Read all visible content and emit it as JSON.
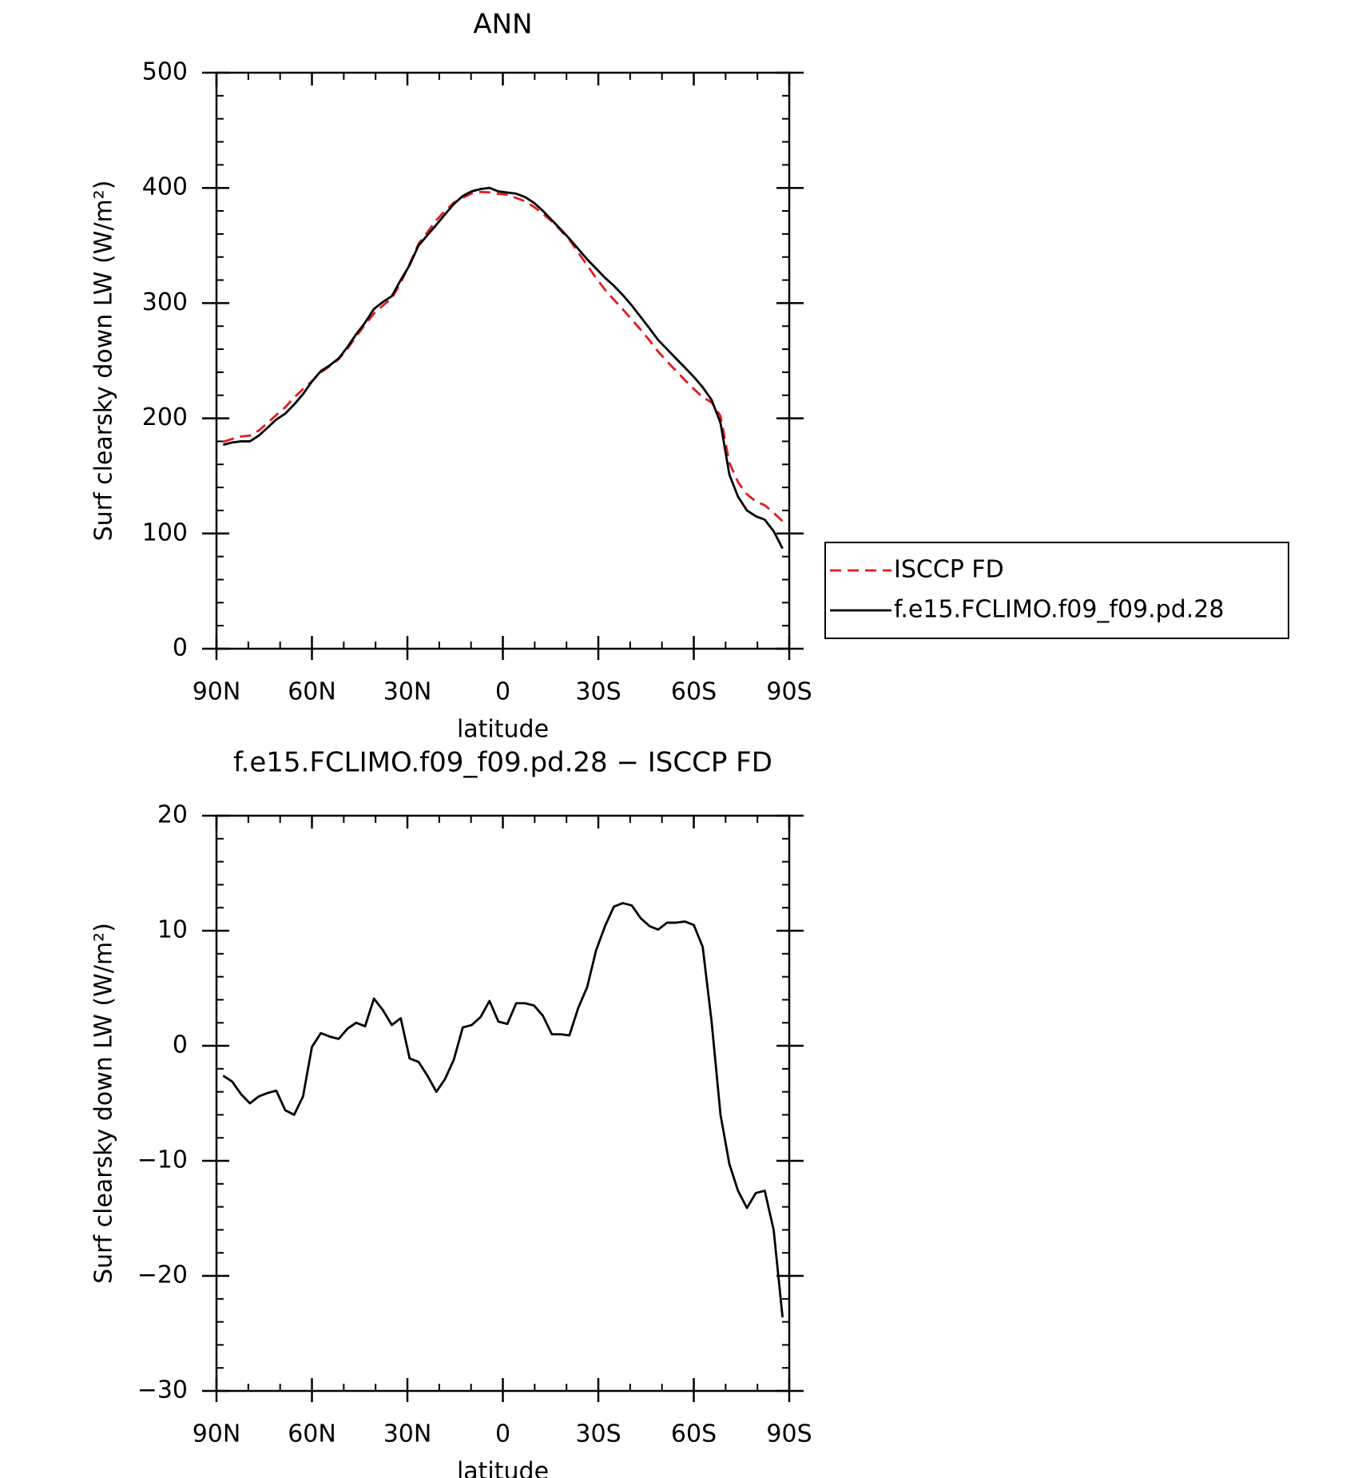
{
  "chart_data": [
    {
      "type": "line",
      "title": "ANN",
      "xlabel": "latitude",
      "ylabel": "Surf clearsky down LW (W/m²)",
      "x": [
        87.9,
        85.1,
        82.3,
        79.5,
        76.7,
        73.9,
        71.2,
        68.4,
        65.6,
        62.8,
        60.0,
        57.2,
        54.4,
        51.6,
        48.8,
        46.1,
        43.3,
        40.5,
        37.7,
        34.9,
        32.1,
        29.3,
        26.5,
        23.7,
        20.9,
        18.2,
        15.4,
        12.6,
        9.8,
        7.0,
        4.2,
        1.4,
        -1.4,
        -4.2,
        -7.0,
        -9.8,
        -12.6,
        -15.4,
        -18.2,
        -20.9,
        -23.7,
        -26.5,
        -29.3,
        -32.1,
        -34.9,
        -37.7,
        -40.5,
        -43.3,
        -46.1,
        -48.8,
        -51.6,
        -54.4,
        -57.2,
        -60.0,
        -62.8,
        -65.6,
        -68.4,
        -71.2,
        -73.9,
        -76.7,
        -79.5,
        -82.3,
        -85.1,
        -87.9
      ],
      "series": [
        {
          "name": "ISCCP FD",
          "color": "#e41a1c",
          "dashed": true,
          "values": [
            179.6,
            182.1,
            184.2,
            185,
            189.4,
            196.1,
            202.9,
            209.6,
            218,
            225.4,
            232.1,
            239.9,
            245.2,
            251.4,
            260.5,
            271,
            281.3,
            290.9,
            297.9,
            304.2,
            317.6,
            334.1,
            351.4,
            361.6,
            372,
            379.9,
            387.2,
            391.4,
            395.2,
            396.5,
            396.1,
            394.9,
            394.1,
            391.3,
            388.3,
            383.5,
            377.4,
            371,
            363,
            355.1,
            343.7,
            332.9,
            321.7,
            311.6,
            302.9,
            294.6,
            285.8,
            276.9,
            267.6,
            257.9,
            249.3,
            241.3,
            233.2,
            225.5,
            218.4,
            213.9,
            202,
            161.3,
            144.6,
            134.1,
            127.8,
            124.6,
            118,
            110.6
          ]
        },
        {
          "name": "f.e15.FCLIMO.f09_f09.pd.28",
          "color": "#000000",
          "dashed": false,
          "values": [
            177,
            179,
            180,
            180,
            185,
            192,
            199,
            204,
            212,
            221,
            232,
            241,
            246,
            252,
            262,
            273,
            283,
            295,
            301,
            306,
            320,
            333,
            350,
            359,
            368,
            377,
            386,
            393,
            397,
            399,
            400,
            397,
            396,
            395,
            392,
            387,
            380,
            372,
            364,
            356,
            347,
            338,
            330,
            322,
            315,
            307,
            298,
            288,
            278,
            268,
            260,
            252,
            244,
            236,
            227,
            216,
            196,
            151,
            132,
            120,
            115,
            112,
            102,
            87
          ]
        }
      ],
      "xlim": [
        90,
        -90
      ],
      "xticks": [
        {
          "value": 90,
          "label": "90N"
        },
        {
          "value": 60,
          "label": "60N"
        },
        {
          "value": 30,
          "label": "30N"
        },
        0,
        {
          "value": -30,
          "label": "30S"
        },
        {
          "value": -60,
          "label": "60S"
        },
        {
          "value": -90,
          "label": "90S"
        }
      ],
      "ylim": [
        0,
        500
      ],
      "yticks": [
        0,
        100,
        200,
        300,
        400,
        500
      ],
      "legend": "right"
    },
    {
      "type": "line",
      "title": "f.e15.FCLIMO.f09_f09.pd.28 − ISCCP FD",
      "xlabel": "latitude",
      "ylabel": "Surf clearsky down LW (W/m²)",
      "x": [
        87.9,
        85.1,
        82.3,
        79.5,
        76.7,
        73.9,
        71.2,
        68.4,
        65.6,
        62.8,
        60.0,
        57.2,
        54.4,
        51.6,
        48.8,
        46.1,
        43.3,
        40.5,
        37.7,
        34.9,
        32.1,
        29.3,
        26.5,
        23.7,
        20.9,
        18.2,
        15.4,
        12.6,
        9.8,
        7.0,
        4.2,
        1.4,
        -1.4,
        -4.2,
        -7.0,
        -9.8,
        -12.6,
        -15.4,
        -18.2,
        -20.9,
        -23.7,
        -26.5,
        -29.3,
        -32.1,
        -34.9,
        -37.7,
        -40.5,
        -43.3,
        -46.1,
        -48.8,
        -51.6,
        -54.4,
        -57.2,
        -60.0,
        -62.8,
        -65.6,
        -68.4,
        -71.2,
        -73.9,
        -76.7,
        -79.5,
        -82.3,
        -85.1,
        -87.9
      ],
      "color": "#000000",
      "values": [
        -2.6,
        -3.1,
        -4.2,
        -5.0,
        -4.4,
        -4.1,
        -3.9,
        -5.6,
        -6.0,
        -4.4,
        -0.1,
        1.1,
        0.8,
        0.6,
        1.5,
        2.0,
        1.7,
        4.1,
        3.1,
        1.8,
        2.4,
        -1.1,
        -1.4,
        -2.6,
        -4.0,
        -2.9,
        -1.2,
        1.6,
        1.8,
        2.5,
        3.9,
        2.1,
        1.9,
        3.7,
        3.7,
        3.5,
        2.6,
        1.0,
        1.0,
        0.9,
        3.3,
        5.1,
        8.3,
        10.4,
        12.1,
        12.4,
        12.2,
        11.1,
        10.4,
        10.1,
        10.7,
        10.7,
        10.8,
        10.5,
        8.6,
        2.1,
        -6.0,
        -10.3,
        -12.6,
        -14.1,
        -12.8,
        -12.6,
        -16.0,
        -23.6
      ],
      "xlim": [
        90,
        -90
      ],
      "xticks": [
        {
          "value": 90,
          "label": "90N"
        },
        {
          "value": 60,
          "label": "60N"
        },
        {
          "value": 30,
          "label": "30N"
        },
        0,
        {
          "value": -30,
          "label": "30S"
        },
        {
          "value": -60,
          "label": "60S"
        },
        {
          "value": -90,
          "label": "90S"
        }
      ],
      "ylim": [
        -30,
        20
      ],
      "yticks": [
        {
          "value": -30,
          "label": "−30"
        },
        {
          "value": -20,
          "label": "−20"
        },
        {
          "value": -10,
          "label": "−10"
        },
        0,
        10,
        20
      ]
    }
  ]
}
